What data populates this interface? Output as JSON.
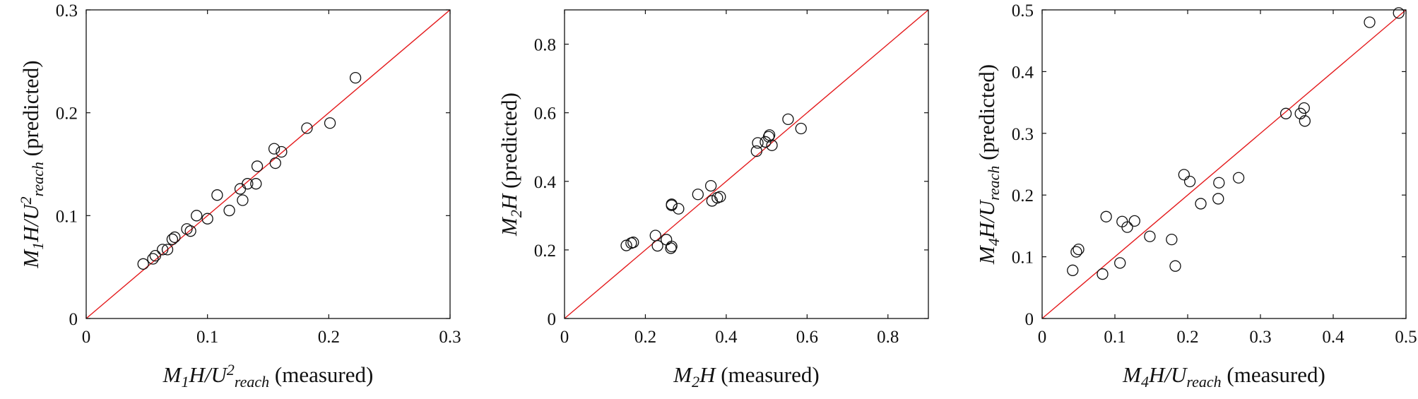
{
  "chart_data": [
    {
      "type": "scatter",
      "title": "",
      "xlabel": {
        "parts": [
          [
            "M",
            "i",
            ""
          ],
          [
            "1",
            "i",
            "sub"
          ],
          [
            "H/U",
            "i",
            ""
          ],
          [
            "2",
            "i",
            "sup"
          ],
          [
            "reach",
            "i",
            "sub"
          ],
          [
            " (measured)",
            "n",
            ""
          ]
        ]
      },
      "ylabel": {
        "parts": [
          [
            "M",
            "i",
            ""
          ],
          [
            "1",
            "i",
            "sub"
          ],
          [
            "H/U",
            "i",
            ""
          ],
          [
            "2",
            "i",
            "sup"
          ],
          [
            "reach",
            "i",
            "sub"
          ],
          [
            " (predicted)",
            "n",
            ""
          ]
        ]
      },
      "xlim": [
        0,
        0.3
      ],
      "ylim": [
        0,
        0.3
      ],
      "xticks": [
        0,
        0.1,
        0.2,
        0.3
      ],
      "yticks": [
        0,
        0.1,
        0.2,
        0.3
      ],
      "xtick_labels": [
        "0",
        "0.1",
        "0.2",
        "0.3"
      ],
      "ytick_labels": [
        "0",
        "0.1",
        "0.2",
        "0.3"
      ],
      "reference_line": {
        "from": [
          0,
          0
        ],
        "to": [
          0.3,
          0.3
        ],
        "color": "#e41a1c"
      },
      "marker": "open-circle",
      "x": [
        0.047,
        0.055,
        0.057,
        0.063,
        0.067,
        0.071,
        0.073,
        0.083,
        0.086,
        0.091,
        0.1,
        0.108,
        0.118,
        0.127,
        0.129,
        0.133,
        0.14,
        0.141,
        0.155,
        0.156,
        0.161,
        0.182,
        0.201,
        0.222
      ],
      "y": [
        0.053,
        0.058,
        0.061,
        0.067,
        0.067,
        0.077,
        0.079,
        0.087,
        0.085,
        0.1,
        0.097,
        0.12,
        0.105,
        0.126,
        0.115,
        0.131,
        0.131,
        0.148,
        0.165,
        0.151,
        0.162,
        0.185,
        0.19,
        0.234
      ]
    },
    {
      "type": "scatter",
      "title": "",
      "xlabel": {
        "parts": [
          [
            "M",
            "i",
            ""
          ],
          [
            "2",
            "i",
            "sub"
          ],
          [
            "H",
            "i",
            ""
          ],
          [
            " (measured)",
            "n",
            ""
          ]
        ]
      },
      "ylabel": {
        "parts": [
          [
            "M",
            "i",
            ""
          ],
          [
            "2",
            "i",
            "sub"
          ],
          [
            "H",
            "i",
            ""
          ],
          [
            " (predicted)",
            "n",
            ""
          ]
        ]
      },
      "xlim": [
        0,
        0.9
      ],
      "ylim": [
        0,
        0.9
      ],
      "xticks": [
        0,
        0.2,
        0.4,
        0.6,
        0.8
      ],
      "yticks": [
        0,
        0.2,
        0.4,
        0.6,
        0.8
      ],
      "xtick_labels": [
        "0",
        "0.2",
        "0.4",
        "0.6",
        "0.8"
      ],
      "ytick_labels": [
        "0",
        "0.2",
        "0.4",
        "0.6",
        "0.8"
      ],
      "reference_line": {
        "from": [
          0,
          0
        ],
        "to": [
          0.9,
          0.9
        ],
        "color": "#e41a1c"
      },
      "marker": "open-circle",
      "x": [
        0.153,
        0.165,
        0.17,
        0.225,
        0.23,
        0.252,
        0.263,
        0.265,
        0.265,
        0.265,
        0.282,
        0.33,
        0.362,
        0.365,
        0.378,
        0.385,
        0.475,
        0.478,
        0.497,
        0.505,
        0.507,
        0.513,
        0.553,
        0.585
      ],
      "y": [
        0.213,
        0.22,
        0.222,
        0.242,
        0.212,
        0.23,
        0.205,
        0.21,
        0.33,
        0.333,
        0.32,
        0.362,
        0.387,
        0.343,
        0.352,
        0.355,
        0.488,
        0.512,
        0.515,
        0.53,
        0.535,
        0.505,
        0.581,
        0.554
      ]
    },
    {
      "type": "scatter",
      "title": "",
      "xlabel": {
        "parts": [
          [
            "M",
            "i",
            ""
          ],
          [
            "4",
            "i",
            "sub"
          ],
          [
            "H/U",
            "i",
            ""
          ],
          [
            "reach",
            "i",
            "sub"
          ],
          [
            " (measured)",
            "n",
            ""
          ]
        ]
      },
      "ylabel": {
        "parts": [
          [
            "M",
            "i",
            ""
          ],
          [
            "4",
            "i",
            "sub"
          ],
          [
            "H/U",
            "i",
            ""
          ],
          [
            "reach",
            "i",
            "sub"
          ],
          [
            " (predicted)",
            "n",
            ""
          ]
        ]
      },
      "xlim": [
        0,
        0.5
      ],
      "ylim": [
        0,
        0.5
      ],
      "xticks": [
        0,
        0.1,
        0.2,
        0.3,
        0.4,
        0.5
      ],
      "yticks": [
        0,
        0.1,
        0.2,
        0.3,
        0.4,
        0.5
      ],
      "xtick_labels": [
        "0",
        "0.1",
        "0.2",
        "0.3",
        "0.4",
        "0.5"
      ],
      "ytick_labels": [
        "0",
        "0.1",
        "0.2",
        "0.3",
        "0.4",
        "0.5"
      ],
      "reference_line": {
        "from": [
          0,
          0
        ],
        "to": [
          0.5,
          0.5
        ],
        "color": "#e41a1c"
      },
      "marker": "open-circle",
      "x": [
        0.042,
        0.047,
        0.05,
        0.083,
        0.088,
        0.107,
        0.11,
        0.117,
        0.127,
        0.148,
        0.178,
        0.183,
        0.195,
        0.203,
        0.218,
        0.242,
        0.243,
        0.27,
        0.335,
        0.355,
        0.36,
        0.361,
        0.45,
        0.49
      ],
      "y": [
        0.078,
        0.108,
        0.112,
        0.072,
        0.165,
        0.09,
        0.157,
        0.148,
        0.158,
        0.133,
        0.128,
        0.085,
        0.233,
        0.222,
        0.186,
        0.194,
        0.22,
        0.228,
        0.332,
        0.332,
        0.341,
        0.32,
        0.48,
        0.495
      ]
    }
  ]
}
